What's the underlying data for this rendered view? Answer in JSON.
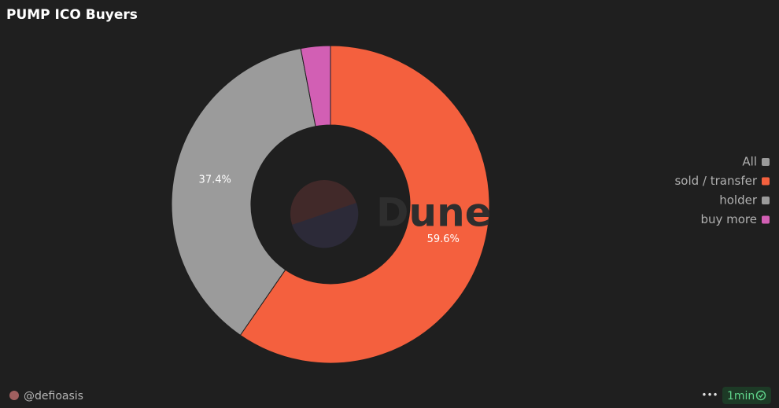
{
  "chart_data": {
    "type": "donut",
    "title": "PUMP ICO Buyers",
    "categories": [
      "All",
      "sold / transfer",
      "holder",
      "buy more"
    ],
    "values": [
      0,
      59.6,
      37.4,
      3.0
    ],
    "value_labels": [
      null,
      "59.6%",
      "37.4%",
      null
    ],
    "colors": [
      "#9b9b9b",
      "#f4603e",
      "#9b9b9b",
      "#d25fb4"
    ],
    "legend": "right"
  },
  "watermark": "Dune",
  "footer": {
    "author": "@defioasis",
    "menu": "•••",
    "refresh": "1min"
  }
}
